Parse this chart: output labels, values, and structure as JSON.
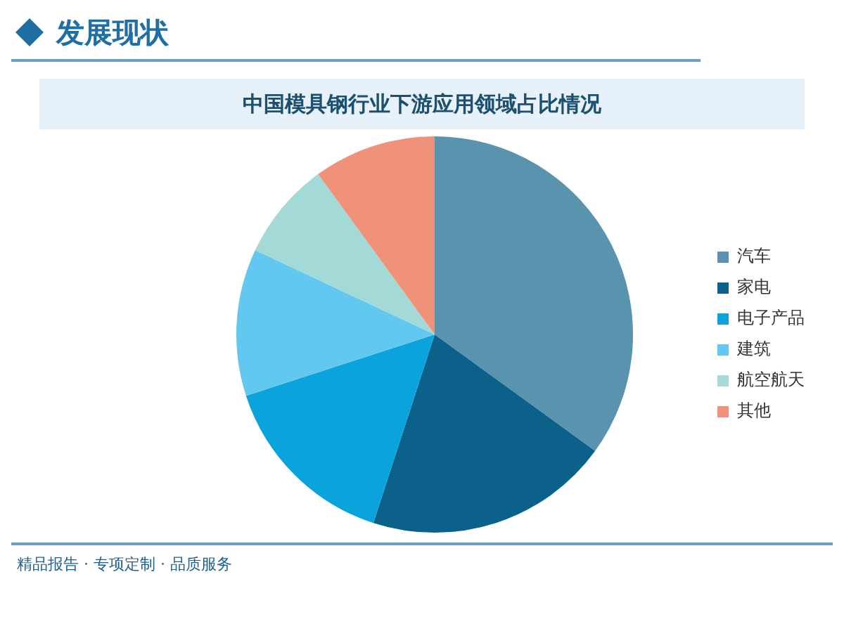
{
  "chart_data": {
    "type": "pie",
    "title": "中国模具钢行业下游应用领域占比情况",
    "annotations": [
      "发展现状",
      "精品报告 · 专项定制 · 品质服务"
    ],
    "categories": [
      "汽车",
      "家电",
      "电子产品",
      "建筑",
      "航空航天",
      "其他"
    ],
    "values": [
      35,
      20,
      15,
      12,
      8,
      10
    ],
    "colors": [
      "#5a93ae",
      "#0b6189",
      "#0aa3dc",
      "#62c8f0",
      "#a3dad8",
      "#ef9279"
    ],
    "legend": "right"
  }
}
